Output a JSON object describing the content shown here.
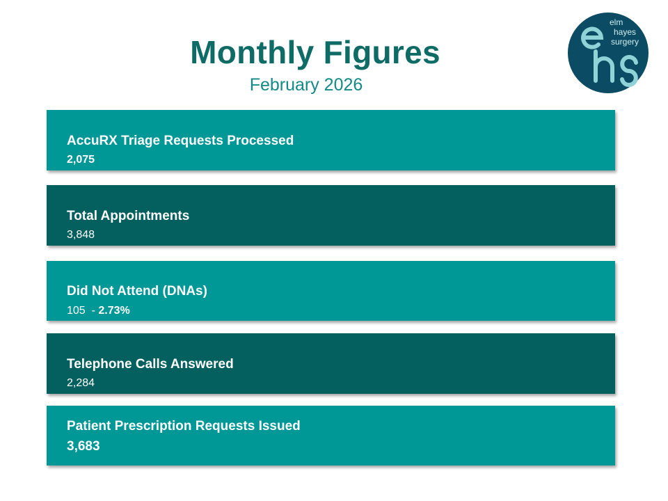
{
  "header": {
    "title": "Monthly Figures",
    "subtitle": "February 2026"
  },
  "logo": {
    "line1": "elm",
    "line2": "hayes",
    "line3": "surgery",
    "monogram": "ehs"
  },
  "cards": [
    {
      "label": "AccuRX Triage Requests Processed",
      "value": "2,075"
    },
    {
      "label": "Total Appointments",
      "value": "3,848"
    },
    {
      "label": "Did Not Attend (DNAs)",
      "value": "105  - ",
      "value_pct": "2.73%"
    },
    {
      "label": "Telephone Calls Answered",
      "value": "2,284"
    },
    {
      "label": "Patient Prescription Requests Issued",
      "value": "3,683"
    }
  ],
  "colors": {
    "title": "#0f6b66",
    "subtitle": "#138a86",
    "card_light": "#009797",
    "card_dark": "#03605e",
    "logo_bg": "#0b4b63",
    "logo_letters": "#8fd3d6"
  }
}
